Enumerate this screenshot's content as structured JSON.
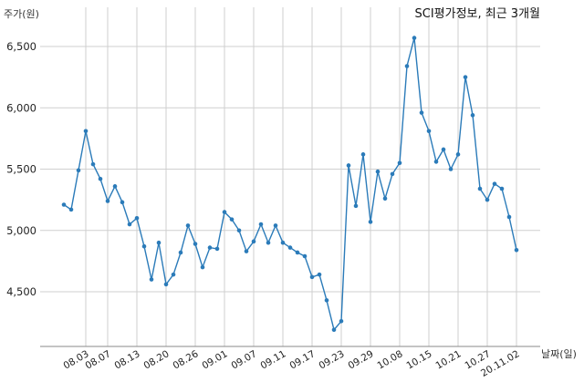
{
  "chart_data": {
    "type": "line",
    "title": "SCI평가정보, 최근 3개월",
    "ylabel": "주가(원)",
    "xlabel": "날짜(일)",
    "ylim": [
      4100,
      6700
    ],
    "yticks": [
      4500,
      5000,
      5500,
      6000,
      6500
    ],
    "ytick_labels": [
      "4,500",
      "5,000",
      "5,500",
      "6,000",
      "6,500"
    ],
    "xtick_labels": [
      "08.03",
      "08.07",
      "08.13",
      "08.20",
      "08.26",
      "09.01",
      "09.07",
      "09.11",
      "09.17",
      "09.23",
      "09.29",
      "10.08",
      "10.15",
      "10.21",
      "10.27",
      "20.11.02"
    ],
    "xtick_index": [
      3,
      6,
      10,
      14,
      18,
      22,
      26,
      30,
      34,
      38,
      42,
      46,
      50,
      54,
      58,
      62
    ],
    "grid": true,
    "line_color": "#2b7bb9",
    "series": [
      {
        "values": [
          5210,
          5170,
          5490,
          5810,
          5540,
          5420,
          5240,
          5360,
          5230,
          5050,
          5100,
          4870,
          4600,
          4900,
          4560,
          4640,
          4820,
          5040,
          4890,
          4700,
          4860,
          4850,
          5150,
          5090,
          5000,
          4830,
          4910,
          5050,
          4900,
          5040,
          4900,
          4860,
          4820,
          4790,
          4620,
          4640,
          4430,
          4190,
          4260,
          5530,
          5200,
          5620,
          5070,
          5480,
          5260,
          5460,
          5550,
          6340,
          6570,
          5960,
          5810,
          5560,
          5660,
          5500,
          5620,
          6250,
          5940,
          5340,
          5250,
          5380,
          5340,
          5110,
          4840
        ]
      }
    ]
  }
}
